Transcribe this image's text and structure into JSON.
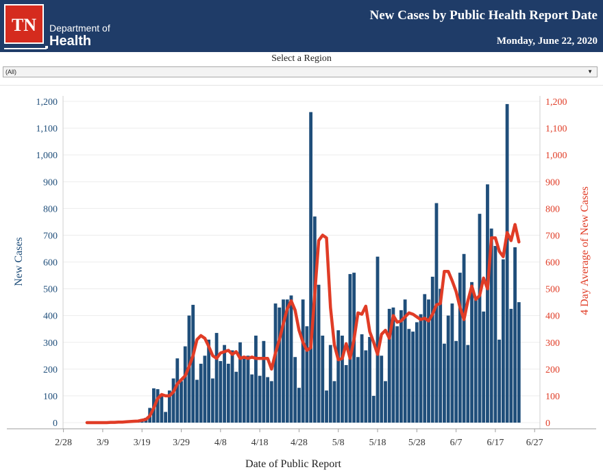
{
  "header": {
    "logo_abbr": "TN",
    "logo_line1": "Department of",
    "logo_line2": "Health",
    "title": "New Cases by Public Health Report Date",
    "date": "Monday, June 22, 2020"
  },
  "filter": {
    "label": "Select a Region",
    "selected": "(All)"
  },
  "colors": {
    "header_bg": "#1f3c68",
    "bar": "#1f4e7a",
    "line": "#e03c26",
    "left_axis_text": "#1f4e7a",
    "right_axis_text": "#e03c26"
  },
  "chart_data": {
    "type": "bar",
    "xlabel": "Date of Public Report",
    "ylabel": "New Cases",
    "y2label": "4 Day Average of New Cases",
    "ylim": [
      0,
      1200
    ],
    "y_ticks": [
      0,
      100,
      200,
      300,
      400,
      500,
      600,
      700,
      800,
      900,
      1000,
      1100,
      1200
    ],
    "x_tick_labels": [
      "2/28",
      "3/9",
      "3/19",
      "3/29",
      "4/8",
      "4/18",
      "4/28",
      "5/8",
      "5/18",
      "5/28",
      "6/7",
      "6/17",
      "6/27"
    ],
    "first_date": "3/5",
    "grid": "horizontal",
    "series": [
      {
        "name": "New Cases",
        "values": [
          1,
          0,
          0,
          1,
          0,
          1,
          2,
          2,
          3,
          3,
          4,
          5,
          8,
          10,
          14,
          18,
          55,
          128,
          125,
          105,
          40,
          120,
          165,
          240,
          155,
          285,
          400,
          440,
          160,
          220,
          250,
          310,
          165,
          335,
          230,
          290,
          220,
          270,
          190,
          300,
          245,
          250,
          180,
          325,
          175,
          305,
          170,
          155,
          445,
          430,
          460,
          460,
          475,
          245,
          130,
          460,
          360,
          1160,
          770,
          515,
          325,
          120,
          290,
          155,
          345,
          325,
          215,
          555,
          560,
          245,
          330,
          270,
          320,
          100,
          620,
          250,
          155,
          425,
          430,
          360,
          420,
          460,
          350,
          340,
          375,
          405,
          480,
          460,
          545,
          820,
          500,
          295,
          400,
          445,
          305,
          560,
          630,
          290,
          525,
          470,
          780,
          415,
          890,
          725,
          660,
          310,
          610,
          1190,
          425,
          655,
          450
        ]
      },
      {
        "name": "4 Day Average of New Cases",
        "values": [
          0,
          0,
          0,
          0,
          0,
          0,
          1,
          1,
          2,
          2,
          3,
          4,
          5,
          6,
          9,
          12,
          25,
          55,
          90,
          105,
          100,
          100,
          115,
          145,
          160,
          175,
          210,
          250,
          310,
          325,
          315,
          285,
          250,
          240,
          260,
          265,
          270,
          255,
          265,
          240,
          245,
          240,
          245,
          240,
          240,
          240,
          240,
          200,
          260,
          310,
          370,
          425,
          455,
          420,
          345,
          300,
          270,
          280,
          480,
          680,
          700,
          690,
          430,
          290,
          235,
          240,
          295,
          240,
          310,
          410,
          405,
          435,
          340,
          300,
          255,
          330,
          345,
          315,
          400,
          375,
          380,
          395,
          410,
          405,
          395,
          385,
          390,
          380,
          405,
          440,
          445,
          565,
          565,
          530,
          490,
          430,
          385,
          455,
          510,
          460,
          475,
          540,
          500,
          690,
          690,
          640,
          620,
          710,
          680,
          740,
          675
        ]
      }
    ]
  }
}
